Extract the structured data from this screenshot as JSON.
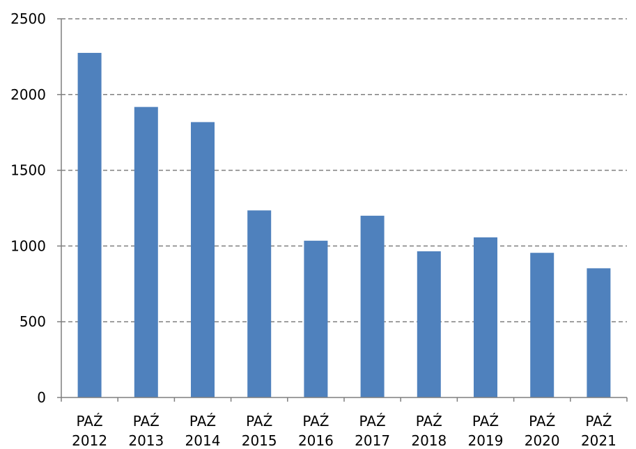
{
  "chart_data": {
    "type": "bar",
    "categories": [
      "PAŹ 2012",
      "PAŹ 2013",
      "PAŹ 2014",
      "PAŹ 2015",
      "PAŹ 2016",
      "PAŹ 2017",
      "PAŹ 2018",
      "PAŹ 2019",
      "PAŹ 2020",
      "PAŹ 2021"
    ],
    "category_lines": [
      [
        "PAŹ",
        "2012"
      ],
      [
        "PAŹ",
        "2013"
      ],
      [
        "PAŹ",
        "2014"
      ],
      [
        "PAŹ",
        "2015"
      ],
      [
        "PAŹ",
        "2016"
      ],
      [
        "PAŹ",
        "2017"
      ],
      [
        "PAŹ",
        "2018"
      ],
      [
        "PAŹ",
        "2019"
      ],
      [
        "PAŹ",
        "2020"
      ],
      [
        "PAŹ",
        "2021"
      ]
    ],
    "values": [
      2275,
      1918,
      1818,
      1235,
      1035,
      1200,
      965,
      1057,
      955,
      853
    ],
    "ylim": [
      0,
      2500
    ],
    "yticks": [
      0,
      500,
      1000,
      1500,
      2000,
      2500
    ],
    "grid": true,
    "bar_color": "#4f81bd",
    "title": "",
    "xlabel": "",
    "ylabel": ""
  }
}
